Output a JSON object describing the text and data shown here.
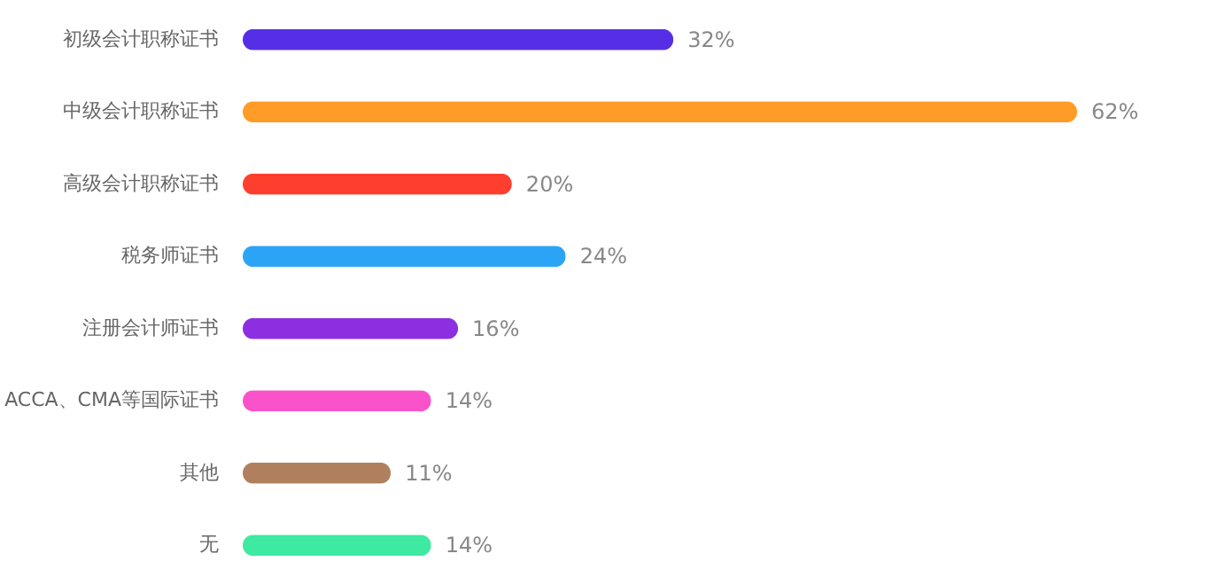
{
  "chart_data": {
    "type": "bar",
    "orientation": "horizontal",
    "categories": [
      "初级会计职称证书",
      "中级会计职称证书",
      "高级会计职称证书",
      "税务师证书",
      "注册会计师证书",
      "ACCA、CMA等国际证书",
      "其他",
      "无"
    ],
    "values": [
      32,
      62,
      20,
      24,
      16,
      14,
      11,
      14
    ],
    "value_labels": [
      "32%",
      "62%",
      "20%",
      "24%",
      "16%",
      "14%",
      "11%",
      "14%"
    ],
    "colors": [
      "#562ee6",
      "#ff9c27",
      "#ff3f2e",
      "#2ba4f6",
      "#8d2fe0",
      "#fa52c9",
      "#b0805e",
      "#3ee9a2"
    ]
  }
}
